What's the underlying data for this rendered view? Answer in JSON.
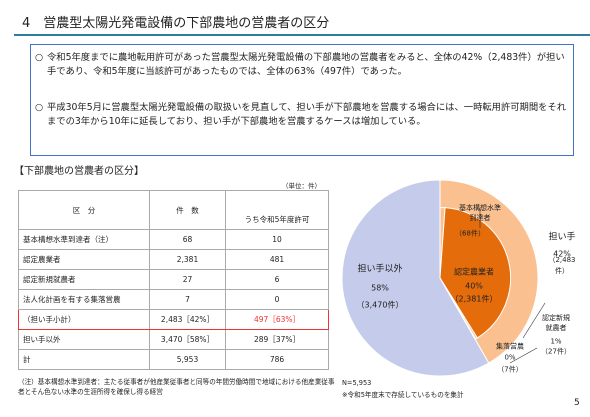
{
  "title": "4　営農型太陽光発電設備の下部農地の営農者の区分",
  "summary": [
    "令和5年度までに農地転用許可があった営農型太陽光発電設備の下部農地の営農者をみると、全体の42%（2,483件）が担い手であり、令和5年度に当該許可があったものでは、全体の63%（497件）であった。",
    "平成30年5月に営農型太陽光発電設備の取扱いを見直して、担い手が下部農地を営農する場合には、一時転用許可期間をそれまでの3年から10年に延長しており、担い手が下部農地を営農するケースは増加している。"
  ],
  "table_section": {
    "heading": "【下部農地の営農者の区分】",
    "unit": "（単位：件）",
    "header": [
      "区　分",
      "件　数",
      "うち令和5年度許可"
    ],
    "rows": [
      [
        "基本構想水準到達者（注）",
        "68",
        "10"
      ],
      [
        "認定農業者",
        "2,381",
        "481"
      ],
      [
        "認定新規就農者",
        "27",
        "6"
      ],
      [
        "法人化計画を有する集落営農",
        "7",
        "0"
      ],
      [
        "（担い手小計）",
        "2,483［42%］",
        "497［63%］"
      ],
      [
        "担い手以外",
        "3,470［58%］",
        "289［37%］"
      ],
      [
        "計",
        "5,953",
        "786"
      ]
    ],
    "note": "（注）基本構想水準到達者：主たる従事者が他産業従事者と同等の年間労働時間で地域における他産業従事者とそん色ない水準の生涯所得を確保し得る経営"
  },
  "pie": {
    "slices": [
      {
        "name": "担い手",
        "value": 2483,
        "value_label": "（2,483件）",
        "percent": 42,
        "percent_label": "42%",
        "color": "#fac090"
      },
      {
        "name": "担い手以外",
        "value": 3470,
        "value_label": "（3,470件）",
        "percent": 58,
        "percent_label": "58%",
        "color": "#c5cbea"
      }
    ],
    "breakdown": [
      {
        "name": "基本構想水準\n到達者",
        "value": 68,
        "value_label": "（68件）",
        "color": "#fac090"
      },
      {
        "name": "認定農業者",
        "value": 2381,
        "value_label": "（2,381件）",
        "percent": 40,
        "percent_label": "40%",
        "color": "#e46c0a"
      },
      {
        "name": "認定新規\n就農者",
        "value": 27,
        "value_label": "（27件）",
        "percent": 1,
        "percent_label": "1%",
        "color": "#fac090"
      },
      {
        "name": "集落営農",
        "value": 7,
        "value_label": "（7件）",
        "percent": 0,
        "percent_label": "0%",
        "color": "#fac090"
      }
    ],
    "n": "N=5,953",
    "note": "※令和5年度末で存続しているものを集計"
  },
  "page_number": "5"
}
